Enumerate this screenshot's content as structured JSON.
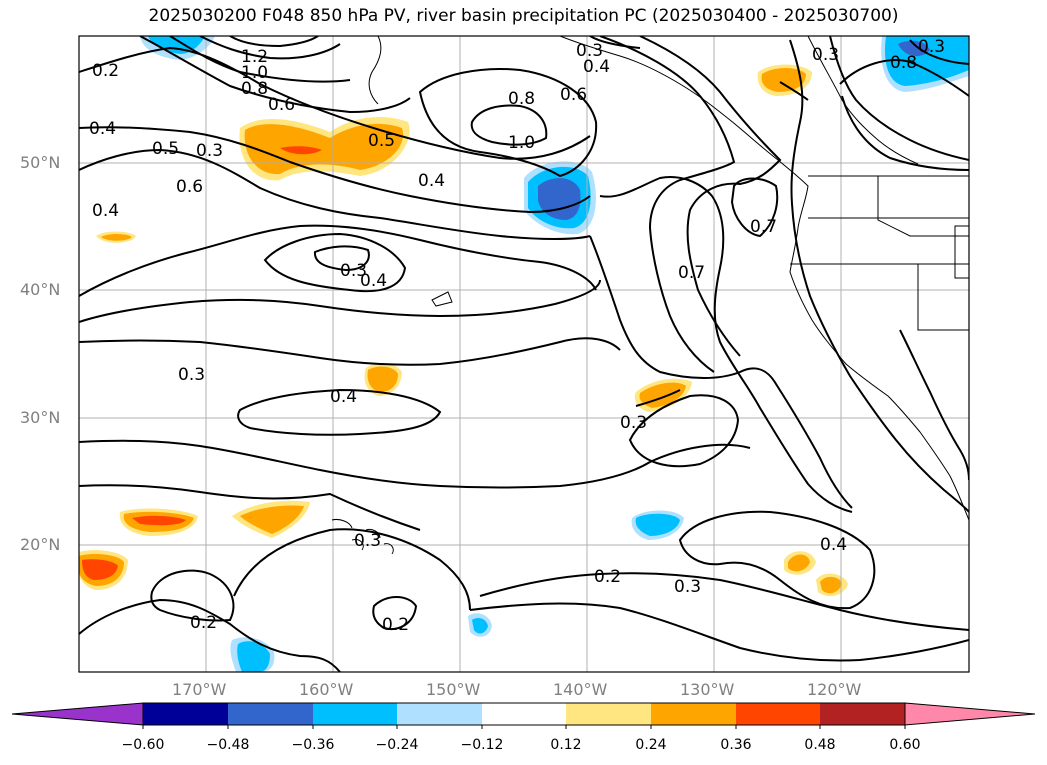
{
  "title": "2025030200 F048 850 hPa PV, river basin precipitation PC (2025030400 - 2025030700)",
  "map": {
    "lon_range": [
      -180,
      -110
    ],
    "lat_range": [
      10,
      60
    ],
    "lon_ticks": [
      "170°W",
      "160°W",
      "150°W",
      "140°W",
      "130°W",
      "120°W"
    ],
    "lat_ticks": [
      "50°N",
      "40°N",
      "30°N",
      "20°N"
    ],
    "grid": true,
    "contour_labels": [
      "1.2",
      "1.0",
      "0.8",
      "0.6",
      "0.2",
      "0.4",
      "0.5",
      "0.3",
      "0.6",
      "0.4",
      "0.3",
      "0.8",
      "0.6",
      "1.0",
      "0.4",
      "0.5",
      "0.4",
      "0.3",
      "0.7",
      "0.7",
      "0.3",
      "0.4",
      "0.3",
      "0.4",
      "0.3",
      "0.2",
      "0.3",
      "0.2",
      "0.2",
      "0.4",
      "0.3",
      "0.3",
      "0.8"
    ]
  },
  "colorbar": {
    "colors": [
      "#9933cc",
      "#000099",
      "#3366cc",
      "#00bfff",
      "#b0e0ff",
      "#ffffff",
      "#ffe680",
      "#ffa500",
      "#ff4500",
      "#b22222",
      "#ff88aa"
    ],
    "tick_labels": [
      "−0.60",
      "−0.48",
      "−0.36",
      "−0.24",
      "−0.12",
      "0.12",
      "0.24",
      "0.36",
      "0.48",
      "0.60"
    ]
  }
}
